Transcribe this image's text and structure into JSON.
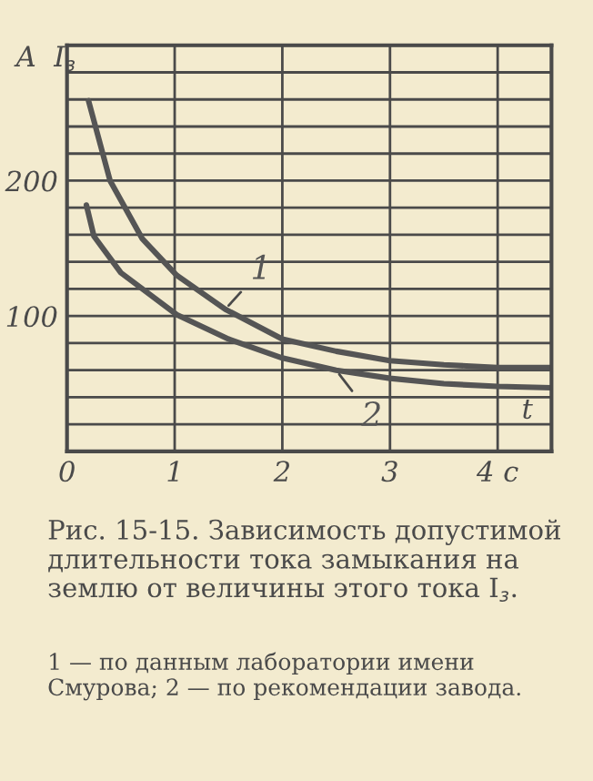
{
  "chart_data": {
    "type": "line",
    "title": "Рис. 15-15. Зависимость допустимой длительности тока замыкания на землю от величины этого тока I$_{з}$.",
    "ylabel": "A  I$_{з}$",
    "xlabel": "t",
    "annotations": [
      "1 — по данным лаборатории имени Смурова; 2 — по рекомендации завода."
    ],
    "xlim": [
      0,
      4.5
    ],
    "xticks": [
      0,
      1,
      2,
      3,
      {
        "value": 4,
        "label": "4 c"
      }
    ],
    "ylim": [
      0,
      300
    ],
    "yticks": [
      {
        "value": 0,
        "label": null
      },
      {
        "value": 20,
        "label": null
      },
      {
        "value": 40,
        "label": null
      },
      {
        "value": 60,
        "label": null
      },
      {
        "value": 80,
        "label": null
      },
      100,
      {
        "value": 120,
        "label": null
      },
      {
        "value": 140,
        "label": null
      },
      {
        "value": 160,
        "label": null
      },
      {
        "value": 180,
        "label": null
      },
      200,
      {
        "value": 220,
        "label": null
      },
      {
        "value": 240,
        "label": null
      },
      {
        "value": 260,
        "label": null
      },
      {
        "value": 280,
        "label": null
      },
      {
        "value": 300,
        "label": null
      }
    ],
    "grid": true,
    "marker": "none",
    "line_style": "solid",
    "series": [
      {
        "name": "1",
        "color": "#555555",
        "x": [
          0.2,
          0.4,
          0.7,
          1.02,
          1.47,
          2,
          2.5,
          3,
          3.5,
          4,
          4.5
        ],
        "values": [
          259,
          200,
          157,
          130,
          105,
          83,
          74,
          67,
          64,
          62,
          62
        ]
      },
      {
        "name": "2",
        "color": "#555555",
        "x": [
          0.18,
          0.25,
          0.5,
          1.02,
          1.5,
          2,
          2.5,
          3,
          3.5,
          4,
          4.5
        ],
        "values": [
          182,
          159,
          132,
          101,
          83,
          69,
          60,
          54,
          50,
          48,
          47
        ]
      }
    ]
  }
}
